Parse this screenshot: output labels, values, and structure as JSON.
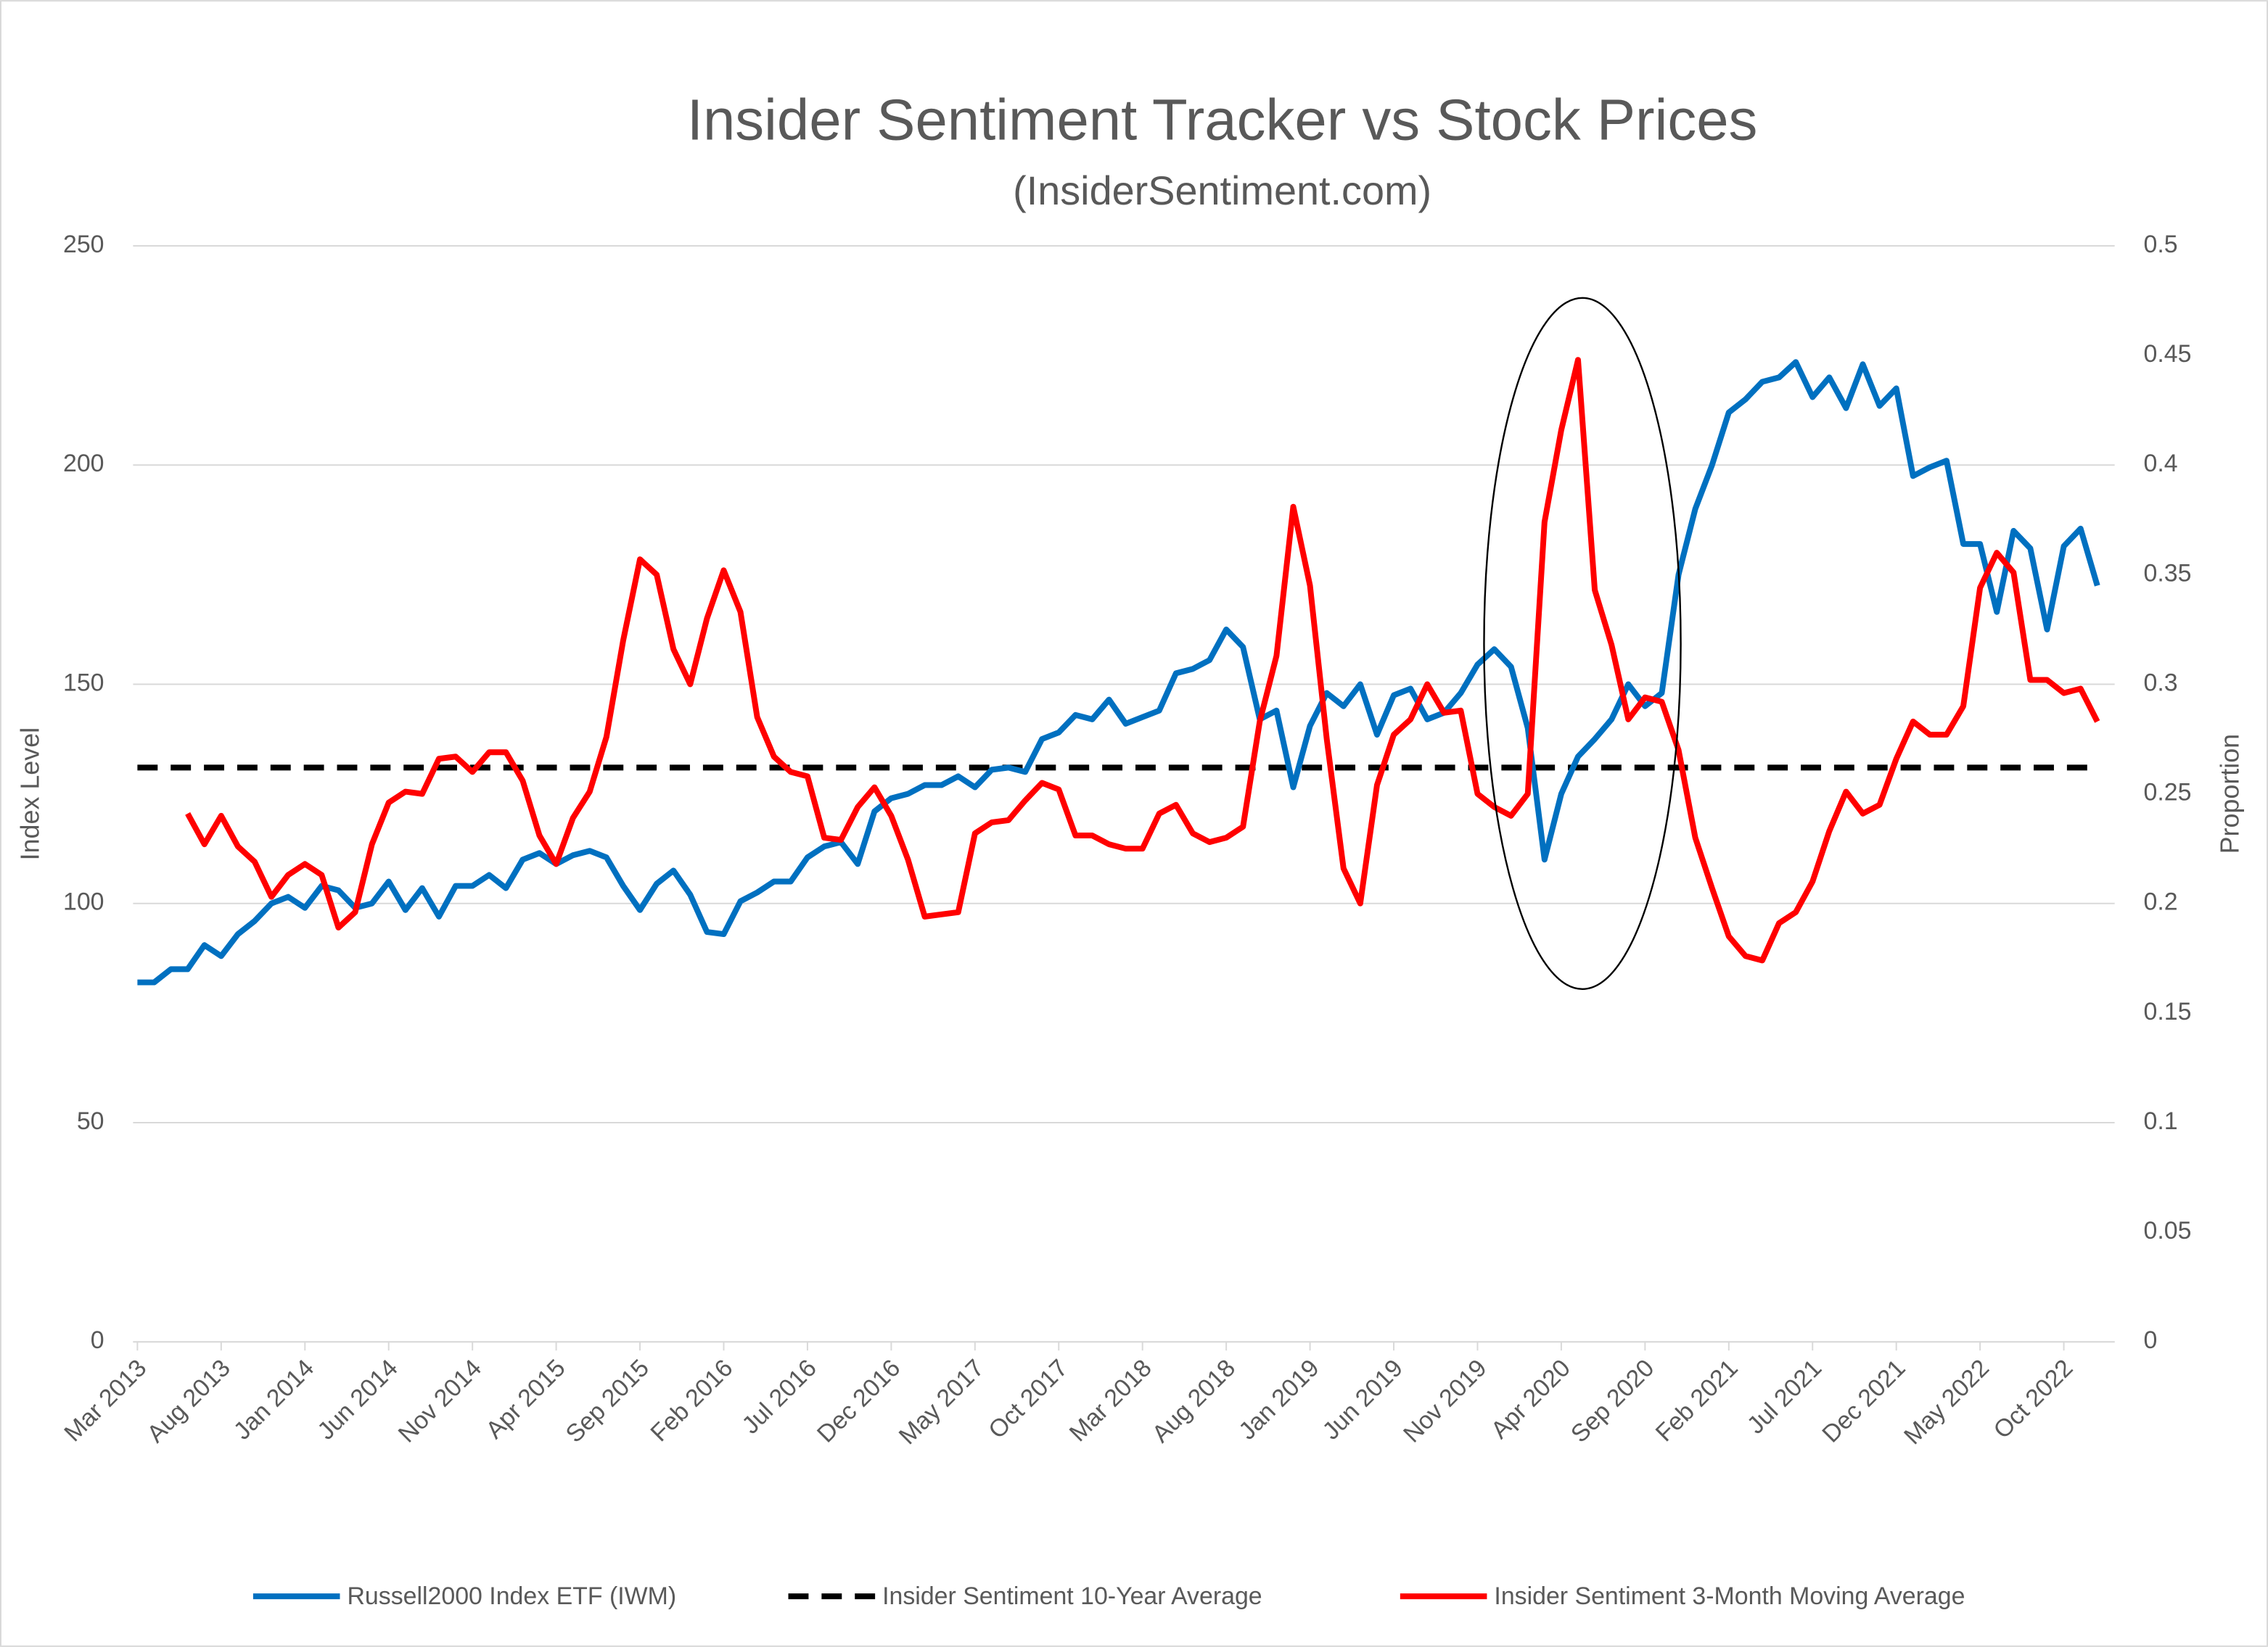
{
  "chart_data": {
    "type": "line",
    "title": "Insider Sentiment Tracker vs Stock Prices",
    "subtitle": "(InsiderSentiment.com)",
    "y_label": "Index Level",
    "y2_label": "Proportion",
    "categories": [
      "Mar 2013",
      null,
      null,
      null,
      null,
      "Aug 2013",
      null,
      null,
      null,
      null,
      "Jan 2014",
      null,
      null,
      null,
      null,
      "Jun 2014",
      null,
      null,
      null,
      null,
      "Nov 2014",
      null,
      null,
      null,
      null,
      "Apr 2015",
      null,
      null,
      null,
      null,
      "Sep 2015",
      null,
      null,
      null,
      null,
      "Feb 2016",
      null,
      null,
      null,
      null,
      "Jul 2016",
      null,
      null,
      null,
      null,
      "Dec 2016",
      null,
      null,
      null,
      null,
      "May 2017",
      null,
      null,
      null,
      null,
      "Oct 2017",
      null,
      null,
      null,
      null,
      "Mar 2018",
      null,
      null,
      null,
      null,
      "Aug 2018",
      null,
      null,
      null,
      null,
      "Jan 2019",
      null,
      null,
      null,
      null,
      "Jun 2019",
      null,
      null,
      null,
      null,
      "Nov 2019",
      null,
      null,
      null,
      null,
      "Apr 2020",
      null,
      null,
      null,
      null,
      "Sep 2020",
      null,
      null,
      null,
      null,
      "Feb 2021",
      null,
      null,
      null,
      null,
      "Jul 2021",
      null,
      null,
      null,
      null,
      "Dec 2021",
      null,
      null,
      null,
      null,
      "May 2022",
      null,
      null,
      null,
      null,
      "Oct 2022",
      null,
      null
    ],
    "ylim": [
      0,
      250
    ],
    "yticks": [
      0,
      50,
      100,
      150,
      200,
      250
    ],
    "y2lim": [
      0,
      0.5
    ],
    "y2ticks": [
      0,
      0.05,
      0.1,
      0.15,
      0.2,
      0.25,
      0.3,
      0.35,
      0.4,
      0.45,
      0.5
    ],
    "grid": true,
    "legend": "bottom",
    "series": [
      {
        "name": "Russell2000 Index ETF (IWM)",
        "color": "#0070c0",
        "values": [
          82,
          82,
          85,
          85,
          90.5,
          88,
          93,
          96,
          100,
          101.5,
          99,
          104,
          103,
          99,
          100,
          105,
          98.5,
          103.5,
          97,
          104,
          104,
          106.5,
          103.5,
          110,
          111.5,
          109,
          111,
          112,
          110.5,
          104,
          98.5,
          104.5,
          107.5,
          102,
          93.5,
          93,
          100.5,
          102.5,
          105,
          105,
          110.5,
          113,
          114,
          109,
          121,
          124,
          125,
          127,
          127,
          129,
          126.5,
          130.5,
          131,
          130,
          137.5,
          139,
          143,
          142,
          146.5,
          141,
          142.5,
          144,
          152.5,
          153.5,
          155.5,
          162.5,
          158.5,
          142,
          144,
          126.5,
          140.5,
          148,
          145,
          150,
          138.5,
          147.5,
          149,
          142,
          143.5,
          148,
          154.5,
          158,
          154,
          140,
          110,
          125,
          133.5,
          137.5,
          142,
          150,
          145,
          148,
          175,
          190,
          200,
          212,
          215,
          219,
          220,
          223.5,
          215.5,
          220,
          213,
          223,
          213.5,
          217.5,
          197.5,
          199.5,
          201,
          182,
          182,
          166.5,
          185,
          181,
          162.5,
          181.5,
          185.5,
          172.5
        ]
      },
      {
        "name": "Insider Sentiment 10-Year Average",
        "color": "#000000",
        "dashed": true,
        "axis": "y2",
        "values": [
          0.262,
          0.262,
          0.262,
          0.262,
          0.262,
          0.262,
          0.262,
          0.262,
          0.262,
          0.262,
          0.262,
          0.262,
          0.262,
          0.262,
          0.262,
          0.262,
          0.262,
          0.262,
          0.262,
          0.262,
          0.262,
          0.262,
          0.262,
          0.262,
          0.262,
          0.262,
          0.262,
          0.262,
          0.262,
          0.262,
          0.262,
          0.262,
          0.262,
          0.262,
          0.262,
          0.262,
          0.262,
          0.262,
          0.262,
          0.262,
          0.262,
          0.262,
          0.262,
          0.262,
          0.262,
          0.262,
          0.262,
          0.262,
          0.262,
          0.262,
          0.262,
          0.262,
          0.262,
          0.262,
          0.262,
          0.262,
          0.262,
          0.262,
          0.262,
          0.262,
          0.262,
          0.262,
          0.262,
          0.262,
          0.262,
          0.262,
          0.262,
          0.262,
          0.262,
          0.262,
          0.262,
          0.262,
          0.262,
          0.262,
          0.262,
          0.262,
          0.262,
          0.262,
          0.262,
          0.262,
          0.262,
          0.262,
          0.262,
          0.262,
          0.262,
          0.262,
          0.262,
          0.262,
          0.262,
          0.262,
          0.262,
          0.262,
          0.262,
          0.262,
          0.262,
          0.262,
          0.262,
          0.262,
          0.262,
          0.262,
          0.262,
          0.262,
          0.262,
          0.262,
          0.262,
          0.262,
          0.262,
          0.262,
          0.262,
          0.262,
          0.262,
          0.262,
          0.262,
          0.262,
          0.262,
          0.262,
          0.262,
          0.262
        ]
      },
      {
        "name": "Insider Sentiment 3-Month Moving Average",
        "color": "#ff0000",
        "axis": "y2",
        "values": [
          null,
          null,
          null,
          0.241,
          0.227,
          0.24,
          0.226,
          0.219,
          0.203,
          0.213,
          0.218,
          0.213,
          0.189,
          0.196,
          0.227,
          0.246,
          0.251,
          0.25,
          0.266,
          0.267,
          0.26,
          0.269,
          0.269,
          0.256,
          0.231,
          0.218,
          0.239,
          0.251,
          0.276,
          0.32,
          0.357,
          0.35,
          0.316,
          0.3,
          0.33,
          0.352,
          0.333,
          0.285,
          0.267,
          0.26,
          0.258,
          0.23,
          0.229,
          0.244,
          0.253,
          0.24,
          0.22,
          0.194,
          0.195,
          0.196,
          0.232,
          0.237,
          0.238,
          0.247,
          0.255,
          0.252,
          0.231,
          0.231,
          0.227,
          0.225,
          0.225,
          0.241,
          0.245,
          0.232,
          0.228,
          0.23,
          0.235,
          0.283,
          0.313,
          0.381,
          0.345,
          0.275,
          0.216,
          0.2,
          0.254,
          0.277,
          0.284,
          0.3,
          0.287,
          0.288,
          0.25,
          0.244,
          0.24,
          0.25,
          0.374,
          0.416,
          0.448,
          0.343,
          0.318,
          0.284,
          0.294,
          0.292,
          0.27,
          0.23,
          0.207,
          0.185,
          0.176,
          0.174,
          0.191,
          0.196,
          0.21,
          0.233,
          0.251,
          0.241,
          0.245,
          0.266,
          0.283,
          0.277,
          0.277,
          0.29,
          0.344,
          0.36,
          0.351,
          0.302,
          0.302,
          0.296,
          0.298,
          0.283
        ]
      }
    ]
  }
}
